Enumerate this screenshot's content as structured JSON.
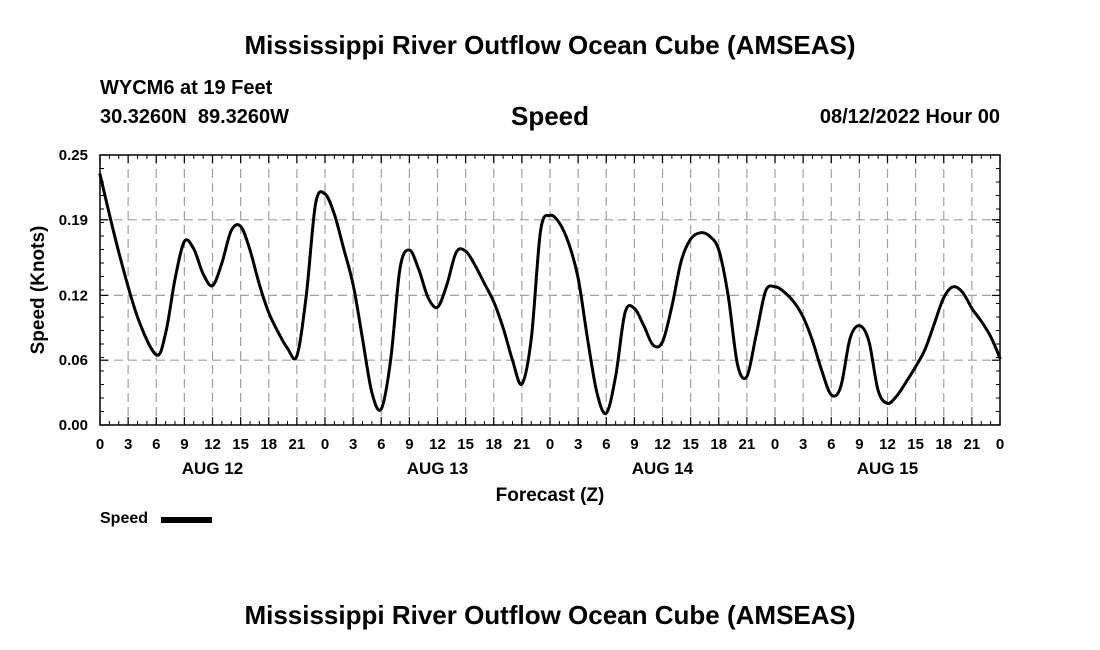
{
  "header": {
    "title": "Mississippi River Outflow Ocean Cube (AMSEAS)",
    "station": "WYCM6 at 19 Feet",
    "coords": "30.3260N  89.3260W",
    "variable": "Speed",
    "date": "08/12/2022 Hour 00"
  },
  "legend": {
    "label": "Speed"
  },
  "footer": {
    "title": "Mississippi River Outflow Ocean Cube (AMSEAS)"
  },
  "colors": {
    "line": "#000000",
    "grid": "#a0a0a0",
    "background": "#ffffff"
  },
  "chart_data": {
    "type": "line",
    "title": "Speed",
    "xlabel": "Forecast (Z)",
    "ylabel": "Speed (Knots)",
    "xlim": [
      0,
      96
    ],
    "ylim": [
      0,
      0.25
    ],
    "yticks": [
      0.0,
      0.06,
      0.12,
      0.19,
      0.25
    ],
    "ytick_labels": [
      "0.00",
      "0.06",
      "0.12",
      "0.19",
      "0.25"
    ],
    "xtick_hours": [
      0,
      3,
      6,
      9,
      12,
      15,
      18,
      21,
      24,
      27,
      30,
      33,
      36,
      39,
      42,
      45,
      48,
      51,
      54,
      57,
      60,
      63,
      66,
      69,
      72,
      75,
      78,
      81,
      84,
      87,
      90,
      93,
      96
    ],
    "xtick_labels": [
      "0",
      "3",
      "6",
      "9",
      "12",
      "15",
      "18",
      "21",
      "0",
      "3",
      "6",
      "9",
      "12",
      "15",
      "18",
      "21",
      "0",
      "3",
      "6",
      "9",
      "12",
      "15",
      "18",
      "21",
      "0",
      "3",
      "6",
      "9",
      "12",
      "15",
      "18",
      "21",
      "0"
    ],
    "day_labels": [
      {
        "label": "AUG 12",
        "hour": 12
      },
      {
        "label": "AUG 13",
        "hour": 36
      },
      {
        "label": "AUG 14",
        "hour": 60
      },
      {
        "label": "AUG 15",
        "hour": 84
      }
    ],
    "grid": true,
    "series": [
      {
        "name": "Speed",
        "x": [
          0,
          2,
          4,
          6,
          7,
          8,
          9,
          10,
          11,
          12,
          13,
          14,
          15,
          16,
          17,
          18,
          19,
          20,
          21,
          22,
          23,
          24,
          25,
          26,
          27,
          28,
          29,
          30,
          31,
          32,
          33,
          34,
          35,
          36,
          37,
          38,
          39,
          40,
          41,
          42,
          43,
          44,
          45,
          46,
          47,
          48,
          49,
          50,
          51,
          52,
          53,
          54,
          55,
          56,
          57,
          58,
          59,
          60,
          61,
          62,
          63,
          64,
          65,
          66,
          67,
          68,
          69,
          70,
          71,
          72,
          73,
          74,
          75,
          76,
          77,
          78,
          79,
          80,
          81,
          82,
          83,
          84,
          85,
          86,
          87,
          88,
          89,
          90,
          91,
          92,
          93,
          94,
          95,
          96
        ],
        "y": [
          0.232,
          0.16,
          0.1,
          0.065,
          0.085,
          0.135,
          0.17,
          0.163,
          0.14,
          0.129,
          0.15,
          0.18,
          0.184,
          0.162,
          0.13,
          0.104,
          0.086,
          0.071,
          0.064,
          0.12,
          0.205,
          0.214,
          0.195,
          0.163,
          0.13,
          0.08,
          0.03,
          0.015,
          0.06,
          0.145,
          0.162,
          0.144,
          0.118,
          0.109,
          0.13,
          0.16,
          0.161,
          0.148,
          0.131,
          0.114,
          0.09,
          0.06,
          0.038,
          0.08,
          0.18,
          0.194,
          0.187,
          0.168,
          0.136,
          0.08,
          0.03,
          0.011,
          0.045,
          0.104,
          0.108,
          0.092,
          0.074,
          0.077,
          0.11,
          0.152,
          0.172,
          0.178,
          0.175,
          0.162,
          0.12,
          0.056,
          0.045,
          0.084,
          0.124,
          0.128,
          0.123,
          0.114,
          0.1,
          0.078,
          0.05,
          0.028,
          0.035,
          0.08,
          0.092,
          0.078,
          0.032,
          0.02,
          0.027,
          0.04,
          0.054,
          0.07,
          0.094,
          0.118,
          0.128,
          0.123,
          0.108,
          0.096,
          0.082,
          0.062
        ]
      }
    ]
  }
}
